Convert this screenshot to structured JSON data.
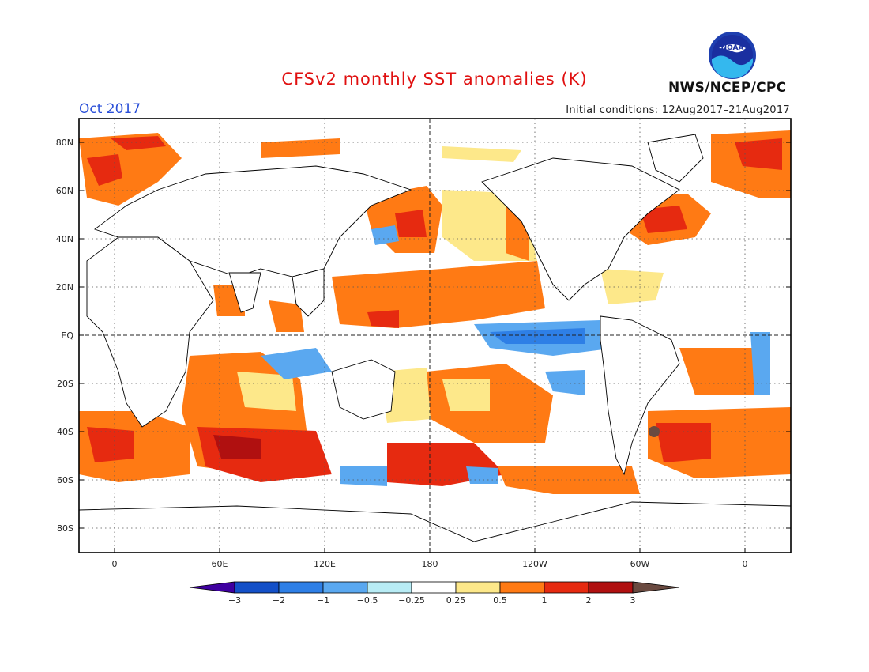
{
  "header": {
    "title": "CFSv2 monthly SST anomalies (K)",
    "period": "Oct 2017",
    "initial_conditions": "Initial conditions: 12Aug2017–21Aug2017",
    "agency": "NWS/NCEP/CPC",
    "logo_text": "NOAA"
  },
  "map": {
    "lat_ticks": [
      "80N",
      "60N",
      "40N",
      "20N",
      "EQ",
      "20S",
      "40S",
      "60S",
      "80S"
    ],
    "lon_ticks": [
      "0",
      "60E",
      "120E",
      "180",
      "120W",
      "60W",
      "0"
    ],
    "reference_lines": [
      "EQ",
      "180"
    ],
    "grid": "dotted"
  },
  "colorbar": {
    "labels": [
      "-3",
      "-2",
      "-1",
      "-0.5",
      "-0.25",
      "0.25",
      "0.5",
      "1",
      "2",
      "3"
    ],
    "colors": [
      "#3f00a0",
      "#1450c8",
      "#2e7fe6",
      "#5aa8f0",
      "#b8ecf5",
      "#ffffff",
      "#fde88a",
      "#ff7a14",
      "#e62a10",
      "#b01010",
      "#6a4a40"
    ]
  },
  "colors": {
    "title": "#e01010",
    "period": "#2a4fd8",
    "land": "#ffffff",
    "coast": "#000000"
  }
}
